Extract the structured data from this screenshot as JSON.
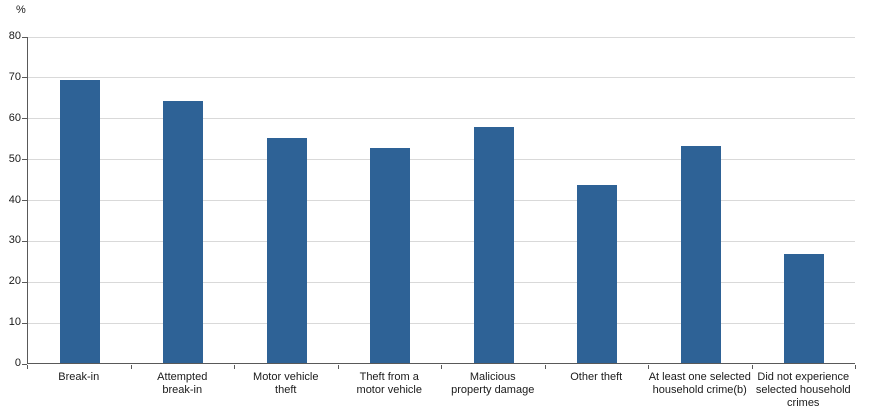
{
  "chart_data": {
    "type": "bar",
    "title": "",
    "ylabel": "%",
    "xlabel": "",
    "ylim": [
      0,
      80
    ],
    "yticks": [
      0,
      10,
      20,
      30,
      40,
      50,
      60,
      70,
      80
    ],
    "grid": "horizontal",
    "legend": "none",
    "categories": [
      "Break-in",
      "Attempted break-in",
      "Motor vehicle theft",
      "Theft from a motor vehicle",
      "Malicious property damage",
      "Other theft",
      "At least one selected household crime(b)",
      "Did not experience selected household crimes"
    ],
    "category_lines": [
      [
        "Break-in"
      ],
      [
        "Attempted",
        "break-in"
      ],
      [
        "Motor vehicle",
        "theft"
      ],
      [
        "Theft from a",
        "motor vehicle"
      ],
      [
        "Malicious",
        "property damage"
      ],
      [
        "Other theft"
      ],
      [
        "At least one selected",
        "household crime(b)"
      ],
      [
        "Did not experience",
        "selected household",
        "crimes"
      ]
    ],
    "values": [
      69,
      64,
      55,
      52.5,
      57.5,
      43.5,
      53,
      26.5
    ],
    "colors": {
      "bar": "#2e6296",
      "gridline": "#d9d9d9",
      "axis": "#595959",
      "text": "#1a1a1a",
      "background": "#ffffff"
    }
  }
}
